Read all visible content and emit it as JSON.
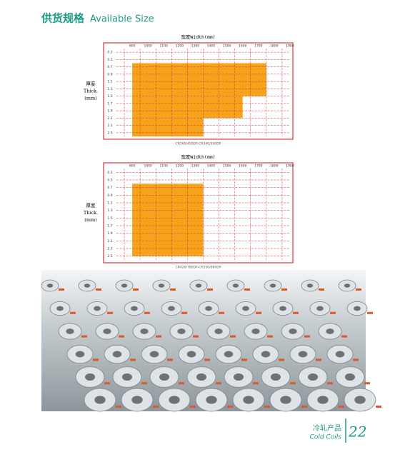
{
  "header": {
    "title_cn": "供货规格",
    "title_en": "Available Size"
  },
  "charts": [
    {
      "x_label": "宽度Width(mm)",
      "y_label": [
        "厚度",
        "Thick.",
        "(mm)"
      ],
      "caption": "CR260/450DP-CR340/590DP",
      "xlim": [
        850,
        1950
      ],
      "xticks": [
        900,
        1000,
        1100,
        1200,
        1300,
        1400,
        1500,
        1600,
        1700,
        1800,
        1900
      ],
      "ylim": [
        0.2,
        2.6
      ],
      "yticks": [
        0.3,
        0.5,
        0.7,
        0.9,
        1.1,
        1.3,
        1.5,
        1.7,
        1.9,
        2.1,
        2.3,
        2.5
      ],
      "color": "#f7a21b",
      "regions": [
        {
          "x": [
            950,
            1800
          ],
          "y": [
            0.6,
            1.5
          ]
        },
        {
          "x": [
            950,
            1650
          ],
          "y": [
            1.5,
            2.1
          ]
        },
        {
          "x": [
            950,
            1400
          ],
          "y": [
            2.1,
            2.6
          ]
        }
      ]
    },
    {
      "x_label": "宽度Width(mm)",
      "y_label": [
        "厚度",
        "Thick.",
        "(mm)"
      ],
      "caption": "CR420/780DP-CR550/980DP",
      "xlim": [
        850,
        1950
      ],
      "xticks": [
        900,
        1000,
        1100,
        1200,
        1300,
        1400,
        1500,
        1600,
        1700,
        1800,
        1900
      ],
      "ylim": [
        0.2,
        2.6
      ],
      "yticks": [
        0.3,
        0.5,
        0.7,
        0.9,
        1.1,
        1.3,
        1.5,
        1.7,
        1.9,
        2.1,
        2.3,
        2.5
      ],
      "color": "#f7a21b",
      "regions": [
        {
          "x": [
            950,
            1400
          ],
          "y": [
            0.6,
            2.5
          ]
        }
      ]
    }
  ],
  "footer": {
    "cn": "冷轧产品",
    "en": "Cold Coils",
    "page": "22"
  }
}
